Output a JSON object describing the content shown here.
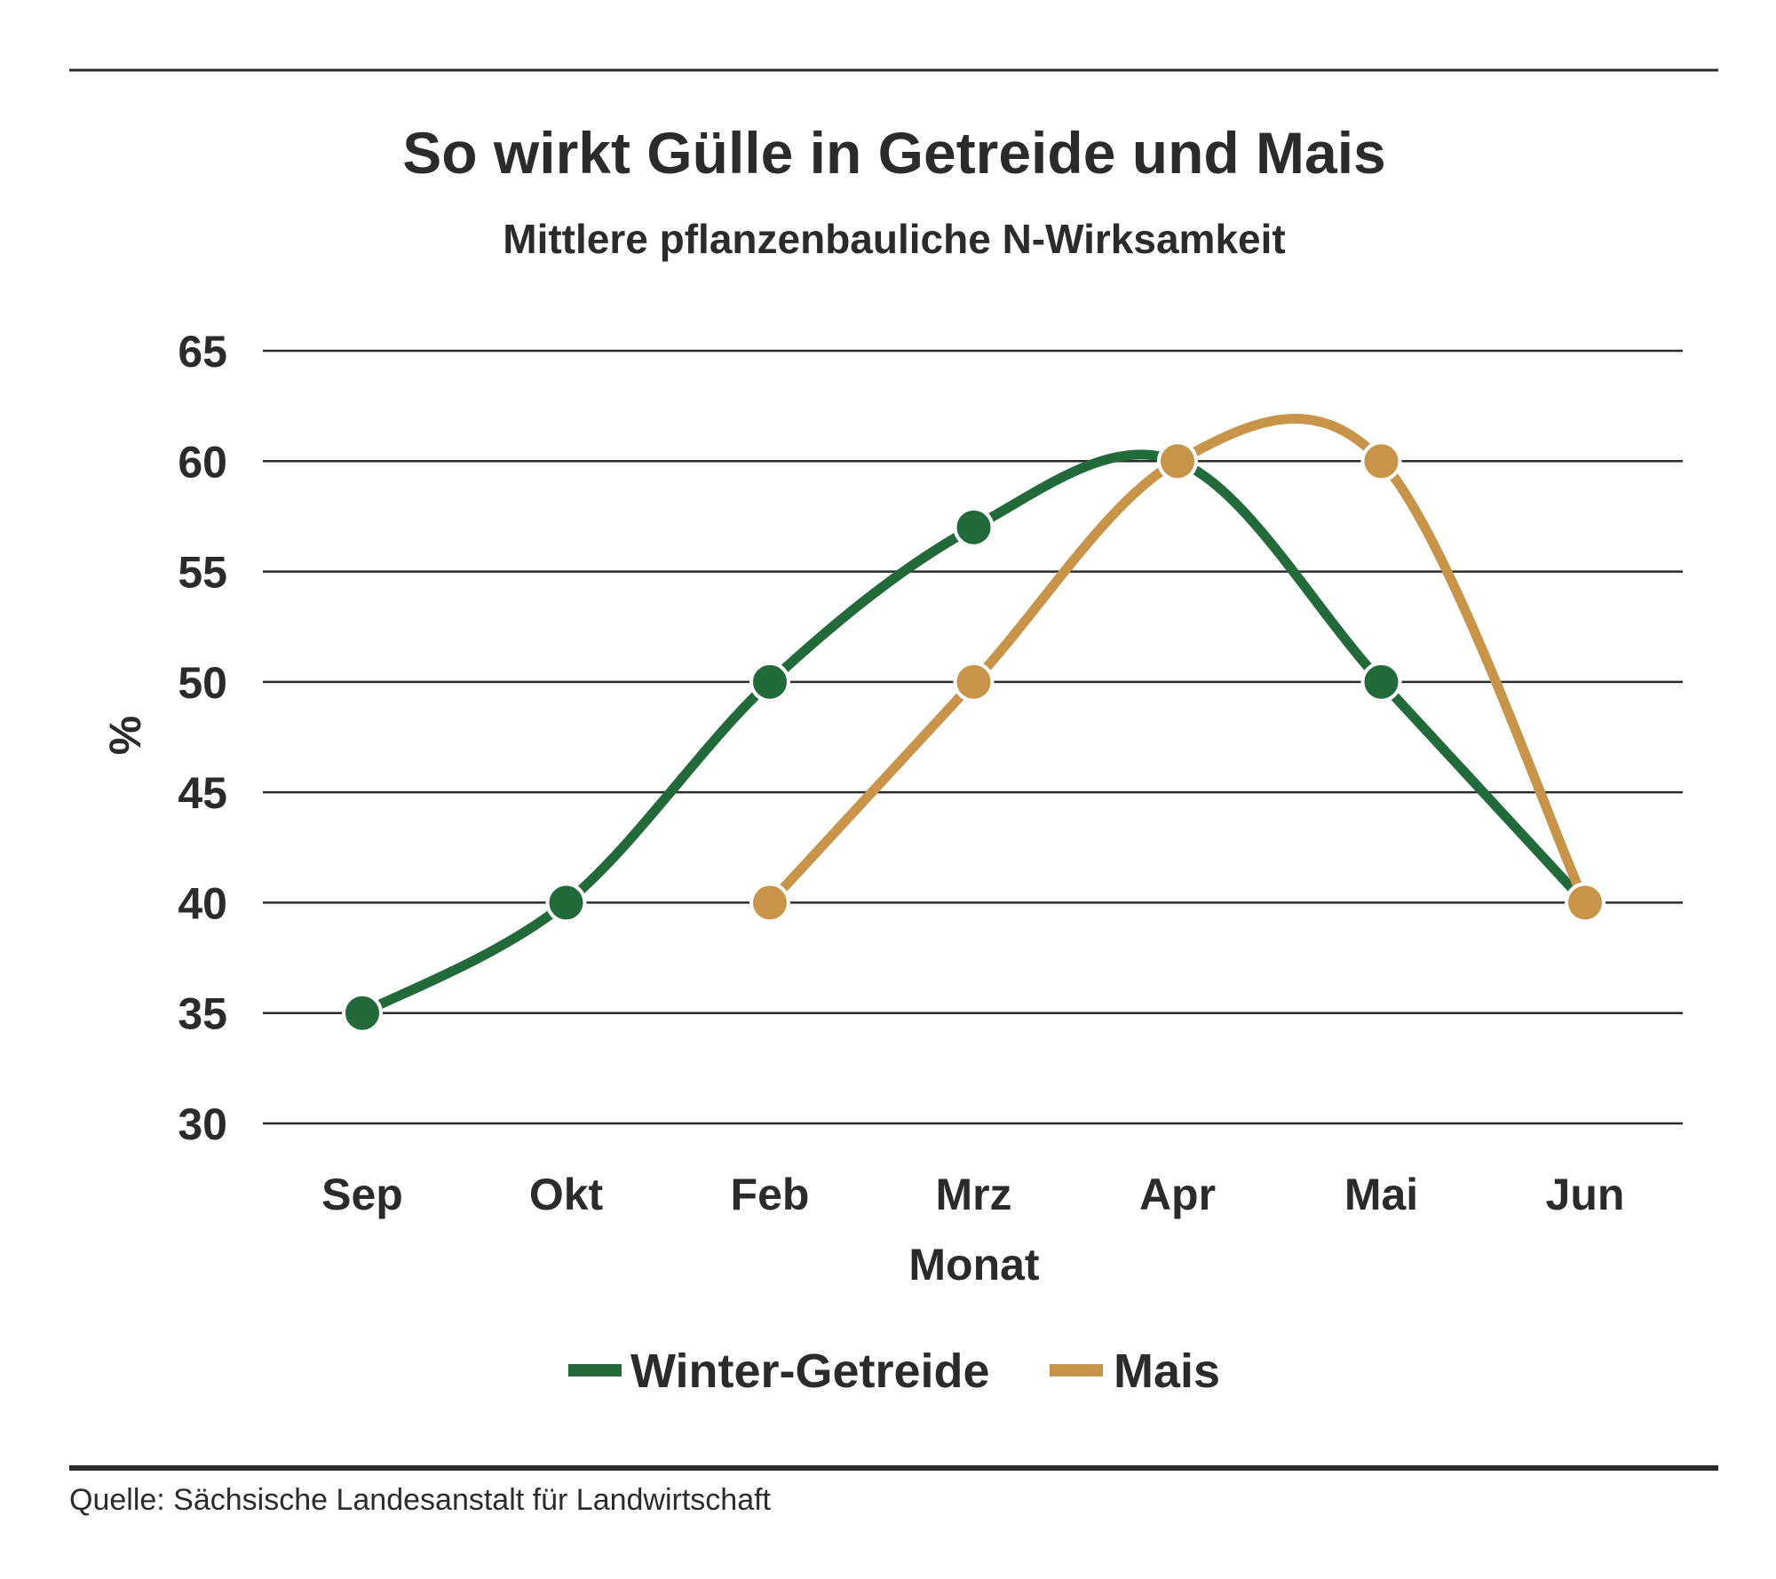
{
  "chart_data": {
    "type": "line",
    "title": "So wirkt Gülle in Getreide und Mais",
    "subtitle": "Mittlere pflanzenbauliche N-Wirksamkeit",
    "xlabel": "Monat",
    "ylabel": "%",
    "categories": [
      "Sep",
      "Okt",
      "Feb",
      "Mrz",
      "Apr",
      "Mai",
      "Jun"
    ],
    "ylim": [
      30,
      65
    ],
    "yticks": [
      65,
      60,
      55,
      50,
      45,
      40,
      35,
      30
    ],
    "grid": true,
    "legend_position": "bottom-center",
    "series": [
      {
        "name": "Winter-Getreide",
        "color": "#236a3b",
        "values": [
          35,
          40,
          50,
          57,
          60,
          50,
          40
        ]
      },
      {
        "name": "Mais",
        "color": "#c8944a",
        "values": [
          null,
          null,
          40,
          50,
          60,
          60,
          40
        ]
      }
    ],
    "source": "Quelle: Sächsische Landesanstalt für Landwirtschaft"
  }
}
